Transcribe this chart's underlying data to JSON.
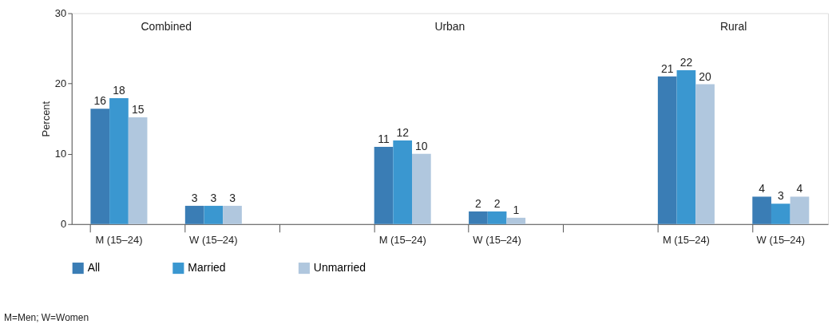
{
  "chart_data": {
    "type": "bar",
    "categories": [
      "M (15–24)",
      "W (15–24)",
      null,
      "M (15–24)",
      "W (15–24)",
      null,
      "M (15–24)",
      "W (15–24)"
    ],
    "series": [
      {
        "name": "All",
        "color": "#3a7db5",
        "values": [
          16.4,
          2.6,
          null,
          11,
          1.8,
          null,
          21,
          3.9
        ],
        "value_labels": [
          "16",
          "3",
          null,
          "11",
          "2",
          null,
          "21",
          "4"
        ]
      },
      {
        "name": "Married",
        "color": "#3a97d0",
        "values": [
          17.9,
          2.6,
          null,
          11.9,
          1.8,
          null,
          21.9,
          2.9
        ],
        "value_labels": [
          "18",
          "3",
          null,
          "12",
          "2",
          null,
          "22",
          "3"
        ]
      },
      {
        "name": "Unmarried",
        "color": "#b0c7de",
        "values": [
          15.2,
          2.6,
          null,
          10,
          0.9,
          null,
          19.9,
          3.9
        ],
        "value_labels": [
          "15",
          "3",
          null,
          "10",
          "1",
          null,
          "20",
          "4"
        ]
      }
    ],
    "ylabel": "Percent",
    "ylim": [
      0,
      30
    ],
    "yticks": [
      0,
      10,
      20,
      30
    ],
    "grid": false,
    "legend": "bottom",
    "annotations": [
      "Combined",
      "Urban",
      "Rural",
      "M=Men; W=Women"
    ]
  }
}
